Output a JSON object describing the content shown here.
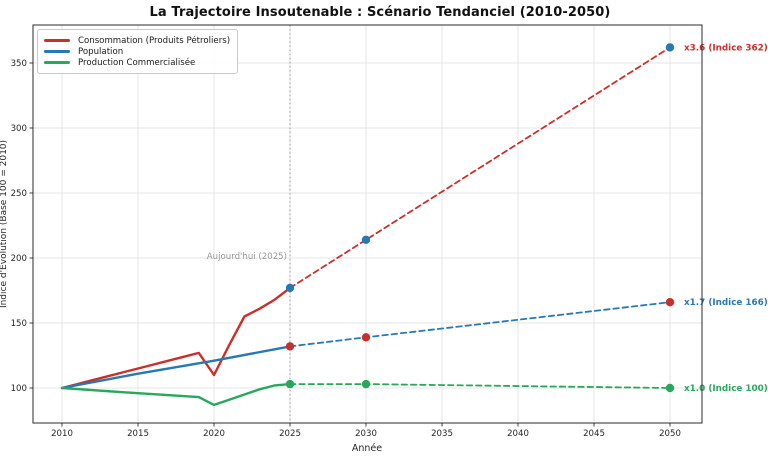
{
  "chart_data": {
    "type": "line",
    "title": "La Trajectoire Insoutenable : Scénario Tendanciel (2010-2050)",
    "xlabel": "Année",
    "ylabel": "Indice d'Évolution (Base 100 = 2010)",
    "x_ticks": [
      2010,
      2015,
      2020,
      2025,
      2030,
      2035,
      2040,
      2045,
      2050
    ],
    "y_ticks": [
      100,
      150,
      200,
      250,
      300,
      350
    ],
    "xlim": [
      2008,
      2052.1
    ],
    "ylim": [
      73,
      379
    ],
    "grid": true,
    "legend_position": "upper-left",
    "today_line": {
      "x": 2025,
      "label": "Aujourd'hui (2025)",
      "color": "#999999"
    },
    "series": [
      {
        "name": "Consommation (Produits Pétroliers)",
        "color": "#c9302c",
        "marker_color": "#2878b4",
        "solid": {
          "x": [
            2010,
            2011,
            2012,
            2013,
            2014,
            2015,
            2016,
            2017,
            2018,
            2019,
            2020,
            2021,
            2022,
            2023,
            2024,
            2025
          ],
          "y": [
            100,
            103,
            106,
            109,
            112,
            115,
            118,
            121,
            124,
            127,
            110,
            133,
            155,
            161,
            168,
            177
          ]
        },
        "dashed": {
          "x": [
            2025,
            2030,
            2050
          ],
          "y": [
            177,
            214,
            362
          ]
        },
        "markers": {
          "x": [
            2025,
            2030,
            2050
          ],
          "y": [
            177,
            214,
            362
          ]
        },
        "end_label": "x3.6 (Indice 362)"
      },
      {
        "name": "Population",
        "color": "#2878b4",
        "marker_color": "#c9302c",
        "solid": {
          "x": [
            2010,
            2015,
            2020,
            2025
          ],
          "y": [
            100,
            111,
            121,
            132
          ]
        },
        "dashed": {
          "x": [
            2025,
            2030,
            2050
          ],
          "y": [
            132,
            139,
            166
          ]
        },
        "markers": {
          "x": [
            2025,
            2030,
            2050
          ],
          "y": [
            132,
            139,
            166
          ]
        },
        "end_label": "x1.7 (Indice 166)"
      },
      {
        "name": "Production Commercialisée",
        "color": "#27a85c",
        "marker_color": "#27a85c",
        "solid": {
          "x": [
            2010,
            2015,
            2019,
            2020,
            2021,
            2022,
            2023,
            2024,
            2025
          ],
          "y": [
            100,
            96,
            93,
            87,
            91,
            95,
            99,
            102,
            103
          ]
        },
        "dashed": {
          "x": [
            2025,
            2030,
            2050
          ],
          "y": [
            103,
            103,
            100
          ]
        },
        "markers": {
          "x": [
            2025,
            2030,
            2050
          ],
          "y": [
            103,
            103,
            100
          ]
        },
        "end_label": "x1.0 (Indice 100)"
      }
    ]
  },
  "style": {
    "grid_color": "#e4e4e4",
    "axis_color": "#2b2b2b",
    "tick_label_color": "#262626",
    "annotation_color": "#999999",
    "background": "#ffffff"
  }
}
